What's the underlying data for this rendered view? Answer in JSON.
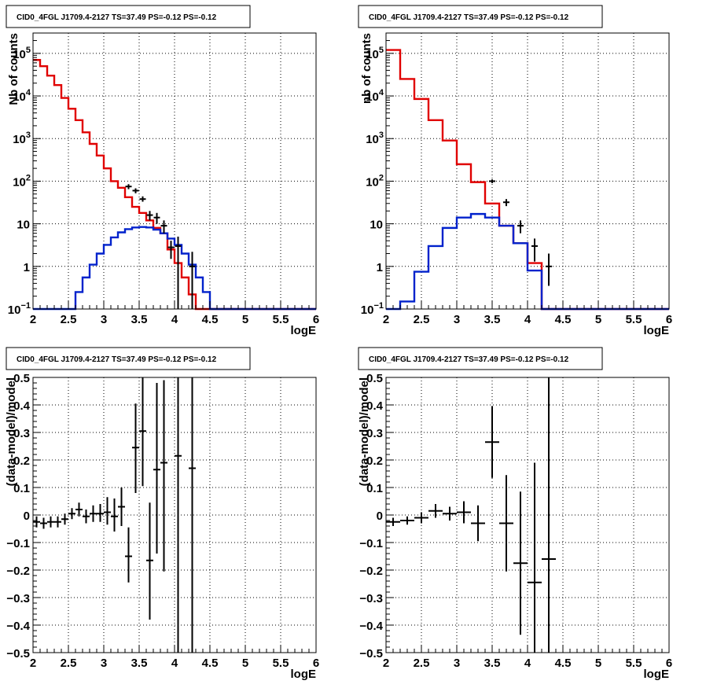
{
  "chart_data": [
    {
      "type": "histogram-log",
      "title": "CID0_4FGL J1709.4-2127 TS=37.49 PS=-0.12 PS=-0.12",
      "xlabel": "logE",
      "ylabel": "Nb of counts",
      "xlim": [
        2,
        6
      ],
      "ylim": [
        0.1,
        300000
      ],
      "log_y": true,
      "grid": true,
      "x_ticks": [
        "2",
        "2.5",
        "3",
        "3.5",
        "4",
        "4.5",
        "5",
        "5.5",
        "6"
      ],
      "y_ticks": [
        {
          "value": 0.1,
          "label": "10^-1"
        },
        {
          "value": 1,
          "label": "1"
        },
        {
          "value": 10,
          "label": "10"
        },
        {
          "value": 100,
          "label": "10^2"
        },
        {
          "value": 1000,
          "label": "10^3"
        },
        {
          "value": 10000,
          "label": "10^4"
        },
        {
          "value": 100000,
          "label": "10^5"
        }
      ],
      "series": [
        {
          "role": "model",
          "color": "#e00000",
          "bin_edges": [
            2.0,
            2.1,
            2.2,
            2.3,
            2.4,
            2.5,
            2.6,
            2.7,
            2.8,
            2.9,
            3.0,
            3.1,
            3.2,
            3.3,
            3.4,
            3.5,
            3.6,
            3.7,
            3.8,
            3.9,
            4.0,
            4.1,
            4.2,
            4.3,
            4.4,
            4.5,
            4.6,
            4.7,
            4.8,
            4.9,
            5.0,
            5.1,
            5.2,
            5.3,
            5.4,
            5.5,
            5.6,
            5.7,
            5.8,
            5.9,
            6.0
          ],
          "values": [
            70000,
            50000,
            30000,
            18000,
            9000,
            5000,
            2700,
            1400,
            750,
            400,
            200,
            100,
            70,
            42,
            25,
            18,
            12,
            8,
            6,
            2.5,
            1.2,
            0.55,
            0.22,
            0.1,
            0.1,
            0.1,
            0.1,
            0.1,
            0.1,
            0.1,
            0.1,
            0.1,
            0.1,
            0.1,
            0.1,
            0.1,
            0.1,
            0.1,
            0.1,
            0.1
          ]
        },
        {
          "role": "source",
          "color": "#0022cc",
          "bin_edges": [
            2.0,
            2.1,
            2.2,
            2.3,
            2.4,
            2.5,
            2.6,
            2.7,
            2.8,
            2.9,
            3.0,
            3.1,
            3.2,
            3.3,
            3.4,
            3.5,
            3.6,
            3.7,
            3.8,
            3.9,
            4.0,
            4.1,
            4.2,
            4.3,
            4.4,
            4.5,
            4.6,
            4.7,
            4.8,
            4.9,
            5.0,
            5.1,
            5.2,
            5.3,
            5.4,
            5.5,
            5.6,
            5.7,
            5.8,
            5.9,
            6.0
          ],
          "values": [
            0.1,
            0.1,
            0.1,
            0.1,
            0.1,
            0.1,
            0.25,
            0.55,
            1.1,
            2.0,
            3.2,
            4.8,
            6.3,
            7.5,
            8.2,
            8.4,
            8.2,
            7.3,
            6.0,
            4.5,
            3.2,
            2.0,
            1.1,
            0.55,
            0.25,
            0.1,
            0.1,
            0.1,
            0.1,
            0.1,
            0.1,
            0.1,
            0.1,
            0.1,
            0.1,
            0.1,
            0.1,
            0.1,
            0.1,
            0.1
          ]
        },
        {
          "role": "data",
          "color": "#000000",
          "points": [
            {
              "x": 3.35,
              "y": 75,
              "lo": 65,
              "hi": 85
            },
            {
              "x": 3.45,
              "y": 60,
              "lo": 52,
              "hi": 68
            },
            {
              "x": 3.55,
              "y": 38,
              "lo": 33,
              "hi": 44
            },
            {
              "x": 3.65,
              "y": 16,
              "lo": 12,
              "hi": 20
            },
            {
              "x": 3.75,
              "y": 14,
              "lo": 10,
              "hi": 18
            },
            {
              "x": 3.85,
              "y": 9,
              "lo": 6,
              "hi": 12
            },
            {
              "x": 3.95,
              "y": 2.8,
              "lo": 1.5,
              "hi": 4
            },
            {
              "x": 4.05,
              "y": 3,
              "lo": 0.1,
              "hi": 5
            },
            {
              "x": 4.25,
              "y": 1,
              "lo": 0.1,
              "hi": 2.2
            }
          ]
        }
      ]
    },
    {
      "type": "histogram-log",
      "title": "CID0_4FGL J1709.4-2127 TS=37.49 PS=-0.12 PS=-0.12",
      "xlabel": "logE",
      "ylabel": "nb of counts",
      "xlim": [
        2,
        6
      ],
      "ylim": [
        0.1,
        300000
      ],
      "log_y": true,
      "grid": true,
      "x_ticks": [
        "2",
        "2.5",
        "3",
        "3.5",
        "4",
        "4.5",
        "5",
        "5.5",
        "6"
      ],
      "y_ticks": [
        {
          "value": 0.1,
          "label": "10^-1"
        },
        {
          "value": 1,
          "label": "1"
        },
        {
          "value": 10,
          "label": "10"
        },
        {
          "value": 100,
          "label": "10^2"
        },
        {
          "value": 1000,
          "label": "10^3"
        },
        {
          "value": 10000,
          "label": "10^4"
        },
        {
          "value": 100000,
          "label": "10^5"
        }
      ],
      "series": [
        {
          "role": "model",
          "color": "#e00000",
          "bin_edges": [
            2.0,
            2.2,
            2.4,
            2.6,
            2.8,
            3.0,
            3.2,
            3.4,
            3.6,
            3.8,
            4.0,
            4.2,
            4.4,
            4.6,
            4.8,
            5.0,
            5.2,
            5.4,
            5.6,
            5.8,
            6.0
          ],
          "values": [
            120000,
            25000,
            8500,
            2700,
            900,
            250,
            95,
            30,
            9,
            3.5,
            1.2,
            0.1,
            0.1,
            0.1,
            0.1,
            0.1,
            0.1,
            0.1,
            0.1,
            0.1
          ]
        },
        {
          "role": "source",
          "color": "#0022cc",
          "bin_edges": [
            2.0,
            2.2,
            2.4,
            2.6,
            2.8,
            3.0,
            3.2,
            3.4,
            3.6,
            3.8,
            4.0,
            4.2,
            4.4,
            4.6,
            4.8,
            5.0,
            5.2,
            5.4,
            5.6,
            5.8,
            6.0
          ],
          "values": [
            0.1,
            0.15,
            0.75,
            3,
            8,
            14,
            17,
            14,
            9,
            3.5,
            0.8,
            0.1,
            0.1,
            0.1,
            0.1,
            0.1,
            0.1,
            0.1,
            0.1,
            0.1
          ]
        },
        {
          "role": "data",
          "color": "#000000",
          "points": [
            {
              "x": 3.5,
              "y": 100,
              "lo": 90,
              "hi": 110
            },
            {
              "x": 3.7,
              "y": 32,
              "lo": 26,
              "hi": 38
            },
            {
              "x": 3.9,
              "y": 9,
              "lo": 6,
              "hi": 12
            },
            {
              "x": 4.1,
              "y": 3,
              "lo": 1.3,
              "hi": 4.5
            },
            {
              "x": 4.3,
              "y": 1,
              "lo": 0.35,
              "hi": 2
            }
          ]
        }
      ]
    },
    {
      "type": "scatter-errorbar",
      "title": "CID0_4FGL J1709.4-2127 TS=37.49 PS=-0.12 PS=-0.12",
      "xlabel": "logE",
      "ylabel": "(data-model)/model",
      "xlim": [
        2,
        6
      ],
      "ylim": [
        -0.5,
        0.5
      ],
      "grid": true,
      "x_ticks": [
        "2",
        "2.5",
        "3",
        "3.5",
        "4",
        "4.5",
        "5",
        "5.5",
        "6"
      ],
      "y_ticks": [
        "-0.5",
        "-0.4",
        "-0.3",
        "-0.2",
        "-0.1",
        "0",
        "0.1",
        "0.2",
        "0.3",
        "0.4",
        "0.5"
      ],
      "points": [
        {
          "x": 2.05,
          "y": -0.025,
          "ylo": -0.045,
          "yhi": -0.005,
          "dx": 0.05
        },
        {
          "x": 2.15,
          "y": -0.03,
          "ylo": -0.05,
          "yhi": -0.01,
          "dx": 0.05
        },
        {
          "x": 2.25,
          "y": -0.025,
          "ylo": -0.045,
          "yhi": -0.005,
          "dx": 0.05
        },
        {
          "x": 2.35,
          "y": -0.025,
          "ylo": -0.045,
          "yhi": -0.005,
          "dx": 0.05
        },
        {
          "x": 2.45,
          "y": -0.015,
          "ylo": -0.035,
          "yhi": 0.005,
          "dx": 0.05
        },
        {
          "x": 2.55,
          "y": 0.005,
          "ylo": -0.015,
          "yhi": 0.025,
          "dx": 0.05
        },
        {
          "x": 2.65,
          "y": 0.02,
          "ylo": -0.005,
          "yhi": 0.045,
          "dx": 0.05
        },
        {
          "x": 2.75,
          "y": -0.005,
          "ylo": -0.03,
          "yhi": 0.02,
          "dx": 0.05
        },
        {
          "x": 2.85,
          "y": 0.005,
          "ylo": -0.025,
          "yhi": 0.035,
          "dx": 0.05
        },
        {
          "x": 2.95,
          "y": 0.005,
          "ylo": -0.025,
          "yhi": 0.04,
          "dx": 0.05
        },
        {
          "x": 3.05,
          "y": 0.01,
          "ylo": -0.035,
          "yhi": 0.065,
          "dx": 0.05
        },
        {
          "x": 3.15,
          "y": -0.005,
          "ylo": -0.06,
          "yhi": 0.06,
          "dx": 0.05
        },
        {
          "x": 3.25,
          "y": 0.03,
          "ylo": -0.04,
          "yhi": 0.1,
          "dx": 0.05
        },
        {
          "x": 3.35,
          "y": -0.15,
          "ylo": -0.245,
          "yhi": -0.045,
          "dx": 0.05
        },
        {
          "x": 3.45,
          "y": 0.245,
          "ylo": 0.08,
          "yhi": 0.405,
          "dx": 0.05
        },
        {
          "x": 3.55,
          "y": 0.305,
          "ylo": 0.105,
          "yhi": 0.5,
          "dx": 0.05
        },
        {
          "x": 3.65,
          "y": -0.165,
          "ylo": -0.38,
          "yhi": 0.045,
          "dx": 0.05
        },
        {
          "x": 3.75,
          "y": 0.165,
          "ylo": -0.14,
          "yhi": 0.48,
          "dx": 0.05
        },
        {
          "x": 3.85,
          "y": 0.19,
          "ylo": -0.205,
          "yhi": 0.49,
          "dx": 0.05
        },
        {
          "x": 4.05,
          "y": 0.215,
          "ylo": -0.5,
          "yhi": 0.5,
          "dx": 0.05
        },
        {
          "x": 4.25,
          "y": 0.17,
          "ylo": -0.5,
          "yhi": 0.5,
          "dx": 0.05
        }
      ]
    },
    {
      "type": "scatter-errorbar",
      "title": "CID0_4FGL J1709.4-2127 TS=37.49 PS=-0.12 PS=-0.12",
      "xlabel": "logE",
      "ylabel": "(data-model)/model",
      "xlim": [
        2,
        6
      ],
      "ylim": [
        -0.5,
        0.5
      ],
      "grid": true,
      "x_ticks": [
        "2",
        "2.5",
        "3",
        "3.5",
        "4",
        "4.5",
        "5",
        "5.5",
        "6"
      ],
      "y_ticks": [
        "-0.5",
        "-0.4",
        "-0.3",
        "-0.2",
        "-0.1",
        "0",
        "0.1",
        "0.2",
        "0.3",
        "0.4",
        "0.5"
      ],
      "points": [
        {
          "x": 2.1,
          "y": -0.025,
          "ylo": -0.04,
          "yhi": -0.01,
          "dx": 0.1
        },
        {
          "x": 2.3,
          "y": -0.02,
          "ylo": -0.035,
          "yhi": -0.005,
          "dx": 0.1
        },
        {
          "x": 2.5,
          "y": -0.01,
          "ylo": -0.03,
          "yhi": 0.01,
          "dx": 0.1
        },
        {
          "x": 2.7,
          "y": 0.015,
          "ylo": -0.01,
          "yhi": 0.04,
          "dx": 0.1
        },
        {
          "x": 2.9,
          "y": 0.005,
          "ylo": -0.02,
          "yhi": 0.03,
          "dx": 0.1
        },
        {
          "x": 3.1,
          "y": 0.01,
          "ylo": -0.03,
          "yhi": 0.05,
          "dx": 0.1
        },
        {
          "x": 3.3,
          "y": -0.03,
          "ylo": -0.095,
          "yhi": 0.035,
          "dx": 0.1
        },
        {
          "x": 3.5,
          "y": 0.265,
          "ylo": 0.135,
          "yhi": 0.395,
          "dx": 0.1
        },
        {
          "x": 3.7,
          "y": -0.03,
          "ylo": -0.205,
          "yhi": 0.145,
          "dx": 0.1
        },
        {
          "x": 3.9,
          "y": -0.175,
          "ylo": -0.435,
          "yhi": 0.085,
          "dx": 0.1
        },
        {
          "x": 4.1,
          "y": -0.245,
          "ylo": -0.5,
          "yhi": 0.19,
          "dx": 0.1
        },
        {
          "x": 4.3,
          "y": -0.16,
          "ylo": -0.5,
          "yhi": 0.5,
          "dx": 0.1
        }
      ]
    }
  ]
}
